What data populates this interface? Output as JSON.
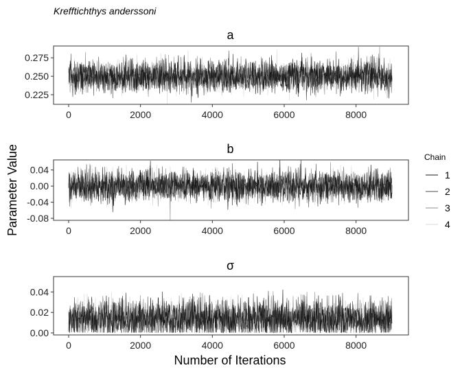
{
  "title": "Krefftichthys anderssoni",
  "xlabel": "Number of Iterations",
  "ylabel": "Parameter Value",
  "legend": {
    "title": "Chain",
    "placement": "right",
    "items": [
      {
        "label": "1",
        "color": "#1a1a1a"
      },
      {
        "label": "2",
        "color": "#4d4d4d"
      },
      {
        "label": "3",
        "color": "#8c8c8c"
      },
      {
        "label": "4",
        "color": "#d9d9d9"
      }
    ]
  },
  "chart_data": [
    {
      "type": "line",
      "panel": "a",
      "x_range": [
        0,
        9000
      ],
      "x_ticks": [
        "0",
        "2000",
        "4000",
        "6000",
        "8000"
      ],
      "y_ticks": [
        "0.225",
        "0.250",
        "0.275"
      ],
      "ylim": [
        0.212,
        0.291
      ],
      "iterations": 9000,
      "series": [
        {
          "name": "1",
          "mean": 0.25,
          "sd": 0.0105
        },
        {
          "name": "2",
          "mean": 0.25,
          "sd": 0.0105
        },
        {
          "name": "3",
          "mean": 0.25,
          "sd": 0.0105
        },
        {
          "name": "4",
          "mean": 0.25,
          "sd": 0.0105
        }
      ]
    },
    {
      "type": "line",
      "panel": "b",
      "x_range": [
        0,
        9000
      ],
      "x_ticks": [
        "0",
        "2000",
        "4000",
        "6000",
        "8000"
      ],
      "y_ticks": [
        "0.04",
        "0.00",
        "-0.04",
        "-0.08"
      ],
      "ylim": [
        -0.085,
        0.065
      ],
      "iterations": 9000,
      "series": [
        {
          "name": "1",
          "mean": 0.0,
          "sd": 0.019
        },
        {
          "name": "2",
          "mean": 0.0,
          "sd": 0.019
        },
        {
          "name": "3",
          "mean": 0.0,
          "sd": 0.019
        },
        {
          "name": "4",
          "mean": 0.0,
          "sd": 0.019
        }
      ]
    },
    {
      "type": "line",
      "panel": "σ",
      "x_range": [
        0,
        9000
      ],
      "x_ticks": [
        "0",
        "2000",
        "4000",
        "6000",
        "8000"
      ],
      "y_ticks": [
        "0.04",
        "0.02",
        "0.00"
      ],
      "ylim": [
        -0.002,
        0.055
      ],
      "iterations": 9000,
      "series": [
        {
          "name": "1",
          "mean": 0.014,
          "sd": 0.009,
          "min": 0.0
        },
        {
          "name": "2",
          "mean": 0.014,
          "sd": 0.009,
          "min": 0.0
        },
        {
          "name": "3",
          "mean": 0.014,
          "sd": 0.009,
          "min": 0.0
        },
        {
          "name": "4",
          "mean": 0.014,
          "sd": 0.009,
          "min": 0.0
        }
      ]
    }
  ]
}
